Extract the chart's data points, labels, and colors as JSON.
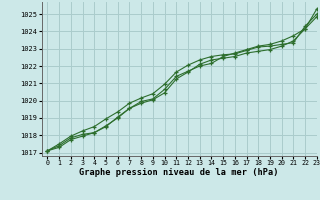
{
  "title": "Graphe pression niveau de la mer (hPa)",
  "bg_color": "#cce8e8",
  "grid_color": "#aacccc",
  "line_color": "#2d6e2d",
  "marker_color": "#2d6e2d",
  "xlim": [
    -0.5,
    23
  ],
  "ylim": [
    1016.8,
    1025.7
  ],
  "xticks": [
    0,
    1,
    2,
    3,
    4,
    5,
    6,
    7,
    8,
    9,
    10,
    11,
    12,
    13,
    14,
    15,
    16,
    17,
    18,
    19,
    20,
    21,
    22,
    23
  ],
  "yticks": [
    1017,
    1018,
    1019,
    1020,
    1021,
    1022,
    1023,
    1024,
    1025
  ],
  "series1": [
    1017.1,
    1017.4,
    1017.85,
    1018.05,
    1018.15,
    1018.55,
    1019.0,
    1019.55,
    1019.85,
    1020.05,
    1020.45,
    1021.25,
    1021.65,
    1022.1,
    1022.35,
    1022.45,
    1022.55,
    1022.75,
    1022.85,
    1022.95,
    1023.15,
    1023.45,
    1024.15,
    1025.3
  ],
  "series2": [
    1017.1,
    1017.5,
    1017.95,
    1018.25,
    1018.5,
    1018.95,
    1019.35,
    1019.85,
    1020.15,
    1020.4,
    1020.95,
    1021.65,
    1022.05,
    1022.35,
    1022.55,
    1022.65,
    1022.7,
    1022.9,
    1023.1,
    1023.15,
    1023.25,
    1023.35,
    1024.3,
    1025.0
  ],
  "series3": [
    1017.1,
    1017.3,
    1017.75,
    1017.95,
    1018.15,
    1018.5,
    1019.05,
    1019.55,
    1019.95,
    1020.1,
    1020.65,
    1021.4,
    1021.7,
    1022.0,
    1022.15,
    1022.55,
    1022.75,
    1022.95,
    1023.15,
    1023.25,
    1023.45,
    1023.75,
    1024.15,
    1024.85
  ],
  "figsize": [
    3.2,
    2.0
  ],
  "dpi": 100
}
